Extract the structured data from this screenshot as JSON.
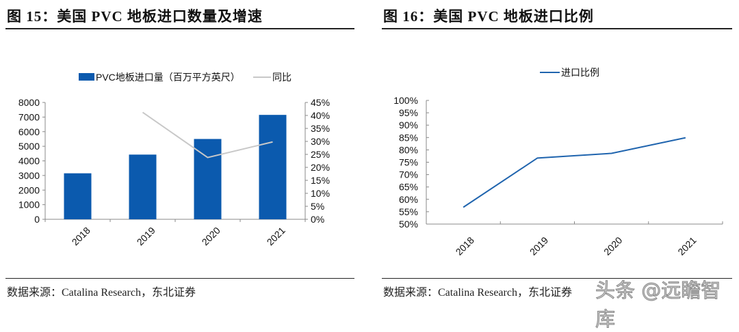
{
  "left": {
    "title": "图 15：美国 PVC 地板进口数量及增速",
    "source": "数据来源：Catalina Research，东北证券"
  },
  "right": {
    "title": "图 16：美国 PVC 地板进口比例",
    "source": "数据来源：Catalina Research，东北证券"
  },
  "watermark": "头条 @远瞻智库",
  "chart_data": [
    {
      "type": "bar",
      "categories": [
        "2018",
        "2019",
        "2020",
        "2021"
      ],
      "series": [
        {
          "name": "PVC地板进口量（百万平方英尺）",
          "type": "bar",
          "axis": "left",
          "color": "#0B5AAE",
          "values": [
            3150,
            4430,
            5500,
            7150
          ]
        },
        {
          "name": "同比",
          "type": "line",
          "axis": "right",
          "color": "#C8C8C8",
          "values": [
            null,
            41.2,
            23.8,
            29.8
          ]
        }
      ],
      "ylim": [
        0,
        8000
      ],
      "yticks": [
        "0",
        "1000",
        "2000",
        "3000",
        "4000",
        "5000",
        "6000",
        "7000",
        "8000"
      ],
      "y2lim": [
        0,
        45
      ],
      "y2ticks": [
        "0%",
        "5%",
        "10%",
        "15%",
        "20%",
        "25%",
        "30%",
        "35%",
        "40%",
        "45%"
      ],
      "legend": "top",
      "grid": false
    },
    {
      "type": "line",
      "categories": [
        "2018",
        "2019",
        "2020",
        "2021"
      ],
      "series": [
        {
          "name": "进口比例",
          "color": "#1F64AE",
          "values": [
            56.8,
            76.7,
            78.6,
            84.9
          ]
        }
      ],
      "ylim": [
        50,
        100
      ],
      "yticks": [
        "50%",
        "55%",
        "60%",
        "65%",
        "70%",
        "75%",
        "80%",
        "85%",
        "90%",
        "95%",
        "100%"
      ],
      "legend": "top",
      "grid": false
    }
  ]
}
